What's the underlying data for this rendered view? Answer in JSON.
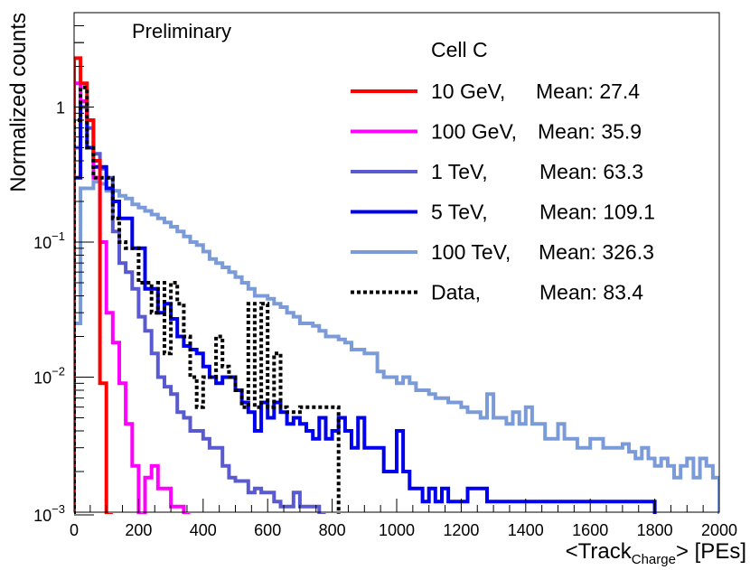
{
  "chart_data": {
    "type": "step-histogram",
    "title": "",
    "annotation": "Preliminary",
    "legend_title": "Cell C",
    "legend_position": "top-right",
    "xlabel": {
      "main": "<Track",
      "sub": "Charge",
      "tail": "> [PEs]"
    },
    "ylabel": "Normalized counts",
    "xlim": [
      0,
      2000
    ],
    "ylim": [
      0.001,
      5
    ],
    "yscale": "log",
    "bin_width": 20,
    "x_ticks": [
      "0",
      "200",
      "400",
      "600",
      "800",
      "1000",
      "1200",
      "1400",
      "1600",
      "1800",
      "2000"
    ],
    "y_ticks": [
      {
        "value": 1,
        "base": "1",
        "exp": ""
      },
      {
        "value": 0.1,
        "base": "10",
        "exp": "−1"
      },
      {
        "value": 0.01,
        "base": "10",
        "exp": "−2"
      },
      {
        "value": 0.001,
        "base": "10",
        "exp": "−3"
      }
    ],
    "series": [
      {
        "name": "10 GeV,",
        "mean_label": "Mean: 27.4",
        "color": "#ff0000",
        "dashed": false,
        "values": [
          2.3,
          1.5,
          0.8,
          0.4,
          0.009,
          0.0008
        ]
      },
      {
        "name": "100 GeV,",
        "mean_label": "Mean: 35.9",
        "color": "#ff00ff",
        "dashed": false,
        "values": [
          1.5,
          1.1,
          0.8,
          0.3,
          0.1,
          0.03,
          0.018,
          0.009,
          0.0045,
          0.0022,
          0.0008,
          0.0018,
          0.0022,
          0.0015,
          0.0015,
          0.0011,
          0.0011,
          0.0008
        ]
      },
      {
        "name": "1 TeV,",
        "mean_label": "Mean: 63.3",
        "color": "#5a5ad0",
        "dashed": false,
        "values": [
          0.5,
          1.0,
          0.7,
          0.45,
          0.35,
          0.3,
          0.12,
          0.07,
          0.06,
          0.045,
          0.028,
          0.022,
          0.015,
          0.01,
          0.0085,
          0.0075,
          0.0055,
          0.005,
          0.004,
          0.004,
          0.0035,
          0.003,
          0.003,
          0.0022,
          0.0018,
          0.0017,
          0.0017,
          0.0014,
          0.0015,
          0.0014,
          0.0014,
          0.0012,
          0.0011,
          0.0011,
          0.0014,
          0.0011,
          0.0011,
          0.0011,
          0.0008
        ]
      },
      {
        "name": "5 TeV,",
        "mean_label": "Mean: 109.1",
        "color": "#0000ee",
        "dashed": false,
        "values": [
          0.3,
          1.1,
          0.5,
          0.36,
          0.36,
          0.25,
          0.2,
          0.15,
          0.15,
          0.09,
          0.09,
          0.045,
          0.045,
          0.03,
          0.035,
          0.027,
          0.02,
          0.017,
          0.016,
          0.015,
          0.012,
          0.01,
          0.009,
          0.01,
          0.01,
          0.008,
          0.0065,
          0.0055,
          0.004,
          0.0065,
          0.005,
          0.0065,
          0.0055,
          0.0045,
          0.005,
          0.0045,
          0.004,
          0.0035,
          0.005,
          0.0035,
          0.004,
          0.005,
          0.004,
          0.003,
          0.005,
          0.003,
          0.003,
          0.003,
          0.002,
          0.002,
          0.004,
          0.002,
          0.0015,
          0.0015,
          0.0012,
          0.0015,
          0.0012,
          0.0015,
          0.0012,
          0.0012,
          0.0012,
          0.0015,
          0.0015,
          0.0015,
          0.0012,
          0.0012,
          0.0012,
          0.0012,
          0.0012,
          0.0012,
          0.0012,
          0.0012,
          0.0012,
          0.0012,
          0.0012,
          0.0012,
          0.0012,
          0.0012,
          0.0012,
          0.0012,
          0.0012,
          0.0012,
          0.0012,
          0.0012,
          0.0012,
          0.0012,
          0.0012,
          0.0012,
          0.0012,
          0.0012
        ]
      },
      {
        "name": "100 TeV,",
        "mean_label": "Mean: 326.3",
        "color": "#7b9bd8",
        "dashed": false,
        "values": [
          0.025,
          0.25,
          0.25,
          0.28,
          0.27,
          0.24,
          0.24,
          0.22,
          0.21,
          0.19,
          0.18,
          0.17,
          0.16,
          0.15,
          0.14,
          0.13,
          0.12,
          0.11,
          0.1,
          0.095,
          0.085,
          0.075,
          0.07,
          0.065,
          0.06,
          0.055,
          0.05,
          0.045,
          0.04,
          0.04,
          0.038,
          0.035,
          0.033,
          0.03,
          0.028,
          0.025,
          0.025,
          0.024,
          0.022,
          0.02,
          0.02,
          0.019,
          0.018,
          0.016,
          0.016,
          0.015,
          0.015,
          0.011,
          0.01,
          0.01,
          0.009,
          0.01,
          0.009,
          0.008,
          0.008,
          0.0075,
          0.007,
          0.007,
          0.0065,
          0.0065,
          0.006,
          0.0055,
          0.0055,
          0.005,
          0.0075,
          0.005,
          0.005,
          0.0045,
          0.0055,
          0.0045,
          0.006,
          0.0045,
          0.0045,
          0.0035,
          0.0035,
          0.0045,
          0.0035,
          0.0035,
          0.003,
          0.003,
          0.0035,
          0.0035,
          0.003,
          0.003,
          0.003,
          0.0032,
          0.0028,
          0.0025,
          0.003,
          0.0025,
          0.0022,
          0.0025,
          0.0022,
          0.0018,
          0.0022,
          0.0025,
          0.0018,
          0.0025,
          0.0022,
          0.0018
        ]
      },
      {
        "name": "Data,",
        "mean_label": "Mean: 83.4",
        "color": "#000000",
        "dashed": true,
        "values": [
          0.8,
          1.4,
          0.5,
          0.3,
          0.3,
          0.3,
          0.15,
          0.1,
          0.09,
          0.09,
          0.05,
          0.05,
          0.03,
          0.05,
          0.015,
          0.05,
          0.035,
          0.02,
          0.01,
          0.006,
          0.01,
          0.01,
          0.02,
          0.012,
          0.01,
          0.008,
          0.006,
          0.035,
          0.006,
          0.035,
          0.006,
          0.015,
          0.006,
          0.0055,
          0.0055,
          0.006,
          0.006,
          0.006,
          0.006,
          0.006,
          0.006
        ]
      }
    ]
  }
}
